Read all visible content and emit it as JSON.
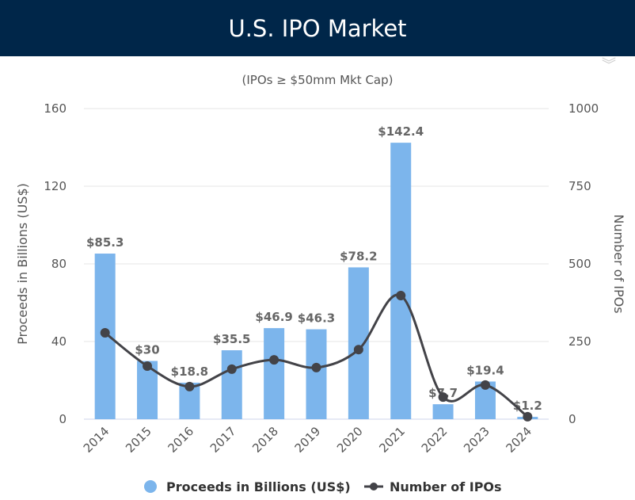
{
  "header": {
    "title": "U.S. IPO Market"
  },
  "chart_data": {
    "type": "bar",
    "title": "U.S. IPO Market",
    "subtitle": "(IPOs ≥ $50mm Mkt Cap)",
    "categories": [
      "2014",
      "2015",
      "2016",
      "2017",
      "2018",
      "2019",
      "2020",
      "2021",
      "2022",
      "2023",
      "2024"
    ],
    "series": [
      {
        "name": "Proceeds in Billions (US$)",
        "type": "bar",
        "axis": "left",
        "color": "#7cb5ec",
        "values": [
          85.3,
          30,
          18.8,
          35.5,
          46.9,
          46.3,
          78.2,
          142.4,
          7.7,
          19.4,
          1.2
        ],
        "labels": [
          "$85.3",
          "$30",
          "$18.8",
          "$35.5",
          "$46.9",
          "$46.3",
          "$78.2",
          "$142.4",
          "$7.7",
          "$19.4",
          "$1.2"
        ]
      },
      {
        "name": "Number of IPOs",
        "type": "line",
        "axis": "right",
        "color": "#434348",
        "values": [
          278,
          171,
          105,
          161,
          191,
          166,
          224,
          398,
          71,
          110,
          8
        ]
      }
    ],
    "ylabel": "Proceeds in Billions (US$)",
    "ylim": [
      0,
      160
    ],
    "yticks": [
      "0",
      "40",
      "80",
      "120",
      "160"
    ],
    "y2label": "Number of IPOs",
    "y2lim": [
      0,
      1000
    ],
    "y2ticks": [
      "0",
      "250",
      "500",
      "750",
      "1000"
    ],
    "grid": true,
    "legend": "bottom-center"
  }
}
